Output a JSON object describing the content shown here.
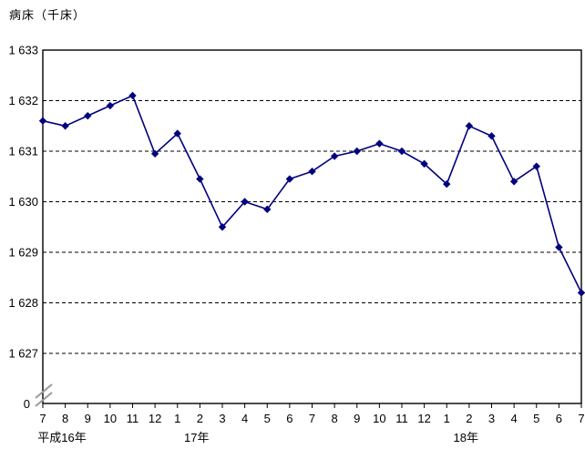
{
  "chart": {
    "title": "病床（千床）"
  },
  "chart_data": {
    "type": "line",
    "title": "病床（千床）",
    "ylabel": "病床（千床）",
    "unit": "thousand beds",
    "x_labels": [
      "7",
      "8",
      "9",
      "10",
      "11",
      "12",
      "1",
      "2",
      "3",
      "4",
      "5",
      "6",
      "7",
      "8",
      "9",
      "10",
      "11",
      "12",
      "1",
      "2",
      "3",
      "4",
      "5",
      "6",
      "7"
    ],
    "year_labels": [
      {
        "label": "平成16年",
        "index": 0
      },
      {
        "label": "17年",
        "index": 6
      },
      {
        "label": "18年",
        "index": 18
      }
    ],
    "values": [
      1631.6,
      1631.5,
      1631.7,
      1631.9,
      1632.1,
      1630.95,
      1631.35,
      1630.45,
      1629.5,
      1630.0,
      1629.85,
      1630.45,
      1630.6,
      1630.9,
      1631.0,
      1631.15,
      1631.0,
      1630.75,
      1630.35,
      1631.5,
      1631.3,
      1630.4,
      1630.7,
      1629.1,
      1628.2
    ],
    "y_axis": {
      "ticks": [
        {
          "label": "1 633",
          "value": 1633
        },
        {
          "label": "1 632",
          "value": 1632
        },
        {
          "label": "1 631",
          "value": 1631
        },
        {
          "label": "1 630",
          "value": 1630
        },
        {
          "label": "1 629",
          "value": 1629
        },
        {
          "label": "1 628",
          "value": 1628
        },
        {
          "label": "1 627",
          "value": 1627
        }
      ],
      "zero_label": "0",
      "axis_break": true
    },
    "ylim_display": [
      1627,
      1633
    ],
    "grid": true,
    "legend": "none",
    "colors": {
      "line": "#000080",
      "marker": "#000080",
      "grid": "#000000",
      "frame": "#000000",
      "axis_break": "#999999",
      "text": "#000000"
    }
  }
}
